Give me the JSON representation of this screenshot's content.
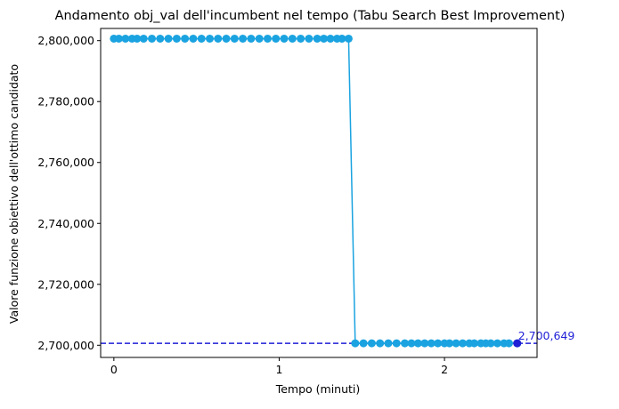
{
  "chart_data": {
    "type": "line",
    "title": "Andamento obj_val dell'incumbent nel tempo (Tabu Search Best Improvement)",
    "xlabel": "Tempo (minuti)",
    "ylabel": "Valore funzione obiettivo dell'ottimo candidato",
    "xlim": [
      -0.08,
      2.56
    ],
    "ylim": [
      2696000,
      2804000
    ],
    "x_ticks": [
      0,
      1,
      2
    ],
    "x_tick_labels": [
      "0",
      "1",
      "2"
    ],
    "y_ticks": [
      2700000,
      2720000,
      2740000,
      2760000,
      2780000,
      2800000
    ],
    "y_tick_labels": [
      "2,700,000",
      "2,720,000",
      "2,740,000",
      "2,760,000",
      "2,780,000",
      "2,800,000"
    ],
    "grid": false,
    "series": [
      {
        "color": "#1aa3e0",
        "marker": "circle",
        "x": [
          0.0,
          0.03,
          0.07,
          0.11,
          0.14,
          0.18,
          0.23,
          0.28,
          0.33,
          0.38,
          0.43,
          0.48,
          0.53,
          0.58,
          0.63,
          0.68,
          0.73,
          0.78,
          0.83,
          0.88,
          0.93,
          0.98,
          1.03,
          1.08,
          1.13,
          1.18,
          1.23,
          1.27,
          1.31,
          1.35,
          1.38,
          1.42,
          1.46,
          1.51,
          1.56,
          1.61,
          1.66,
          1.71,
          1.76,
          1.8,
          1.84,
          1.88,
          1.92,
          1.96,
          2.0,
          2.03,
          2.07,
          2.11,
          2.15,
          2.18,
          2.22,
          2.25,
          2.28,
          2.32,
          2.36,
          2.39,
          2.44
        ],
        "y": [
          2800649,
          2800649,
          2800649,
          2800649,
          2800649,
          2800649,
          2800649,
          2800649,
          2800649,
          2800649,
          2800649,
          2800649,
          2800649,
          2800649,
          2800649,
          2800649,
          2800649,
          2800649,
          2800649,
          2800649,
          2800649,
          2800649,
          2800649,
          2800649,
          2800649,
          2800649,
          2800649,
          2800649,
          2800649,
          2800649,
          2800649,
          2800649,
          2700649,
          2700649,
          2700649,
          2700649,
          2700649,
          2700649,
          2700649,
          2700649,
          2700649,
          2700649,
          2700649,
          2700649,
          2700649,
          2700649,
          2700649,
          2700649,
          2700649,
          2700649,
          2700649,
          2700649,
          2700649,
          2700649,
          2700649,
          2700649,
          2700649
        ]
      }
    ],
    "reference_line": {
      "y": 2700649,
      "color": "#1f1fd6",
      "style": "dashed"
    },
    "final_point": {
      "x": 2.44,
      "y": 2700649,
      "color": "#1f1fd6"
    },
    "annotation": {
      "text": "2,700,649",
      "x": 2.44,
      "y": 2700649,
      "color": "#1f1fd6"
    }
  }
}
